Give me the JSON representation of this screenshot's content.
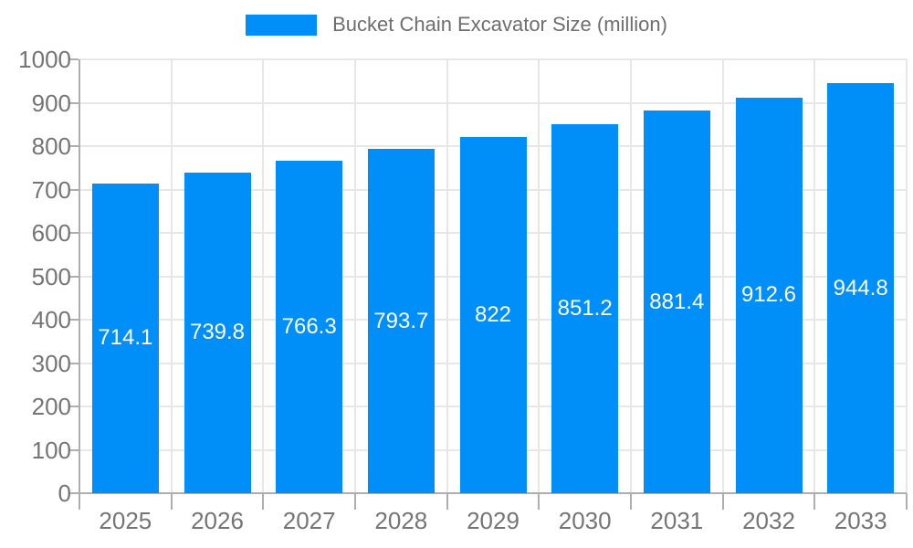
{
  "legend": {
    "label": "Bucket Chain Excavator Size (million)"
  },
  "chart_data": {
    "type": "bar",
    "title": "Bucket Chain Excavator Size (million)",
    "categories": [
      "2025",
      "2026",
      "2027",
      "2028",
      "2029",
      "2030",
      "2031",
      "2032",
      "2033"
    ],
    "values": [
      714.1,
      739.8,
      766.3,
      793.7,
      822,
      851.2,
      881.4,
      912.6,
      944.8
    ],
    "xlabel": "",
    "ylabel": "",
    "ylim": [
      0,
      1000
    ],
    "ytick_step": 100,
    "grid": true,
    "legend_position": "top",
    "value_labels": "inside-center"
  },
  "colors": {
    "bar": "#008FF8",
    "value_label": "#ffffff",
    "grid": "#e7e7e7",
    "axis": "#aeaeae",
    "axis_text": "#757575",
    "title_text": "#6e6e6e"
  }
}
